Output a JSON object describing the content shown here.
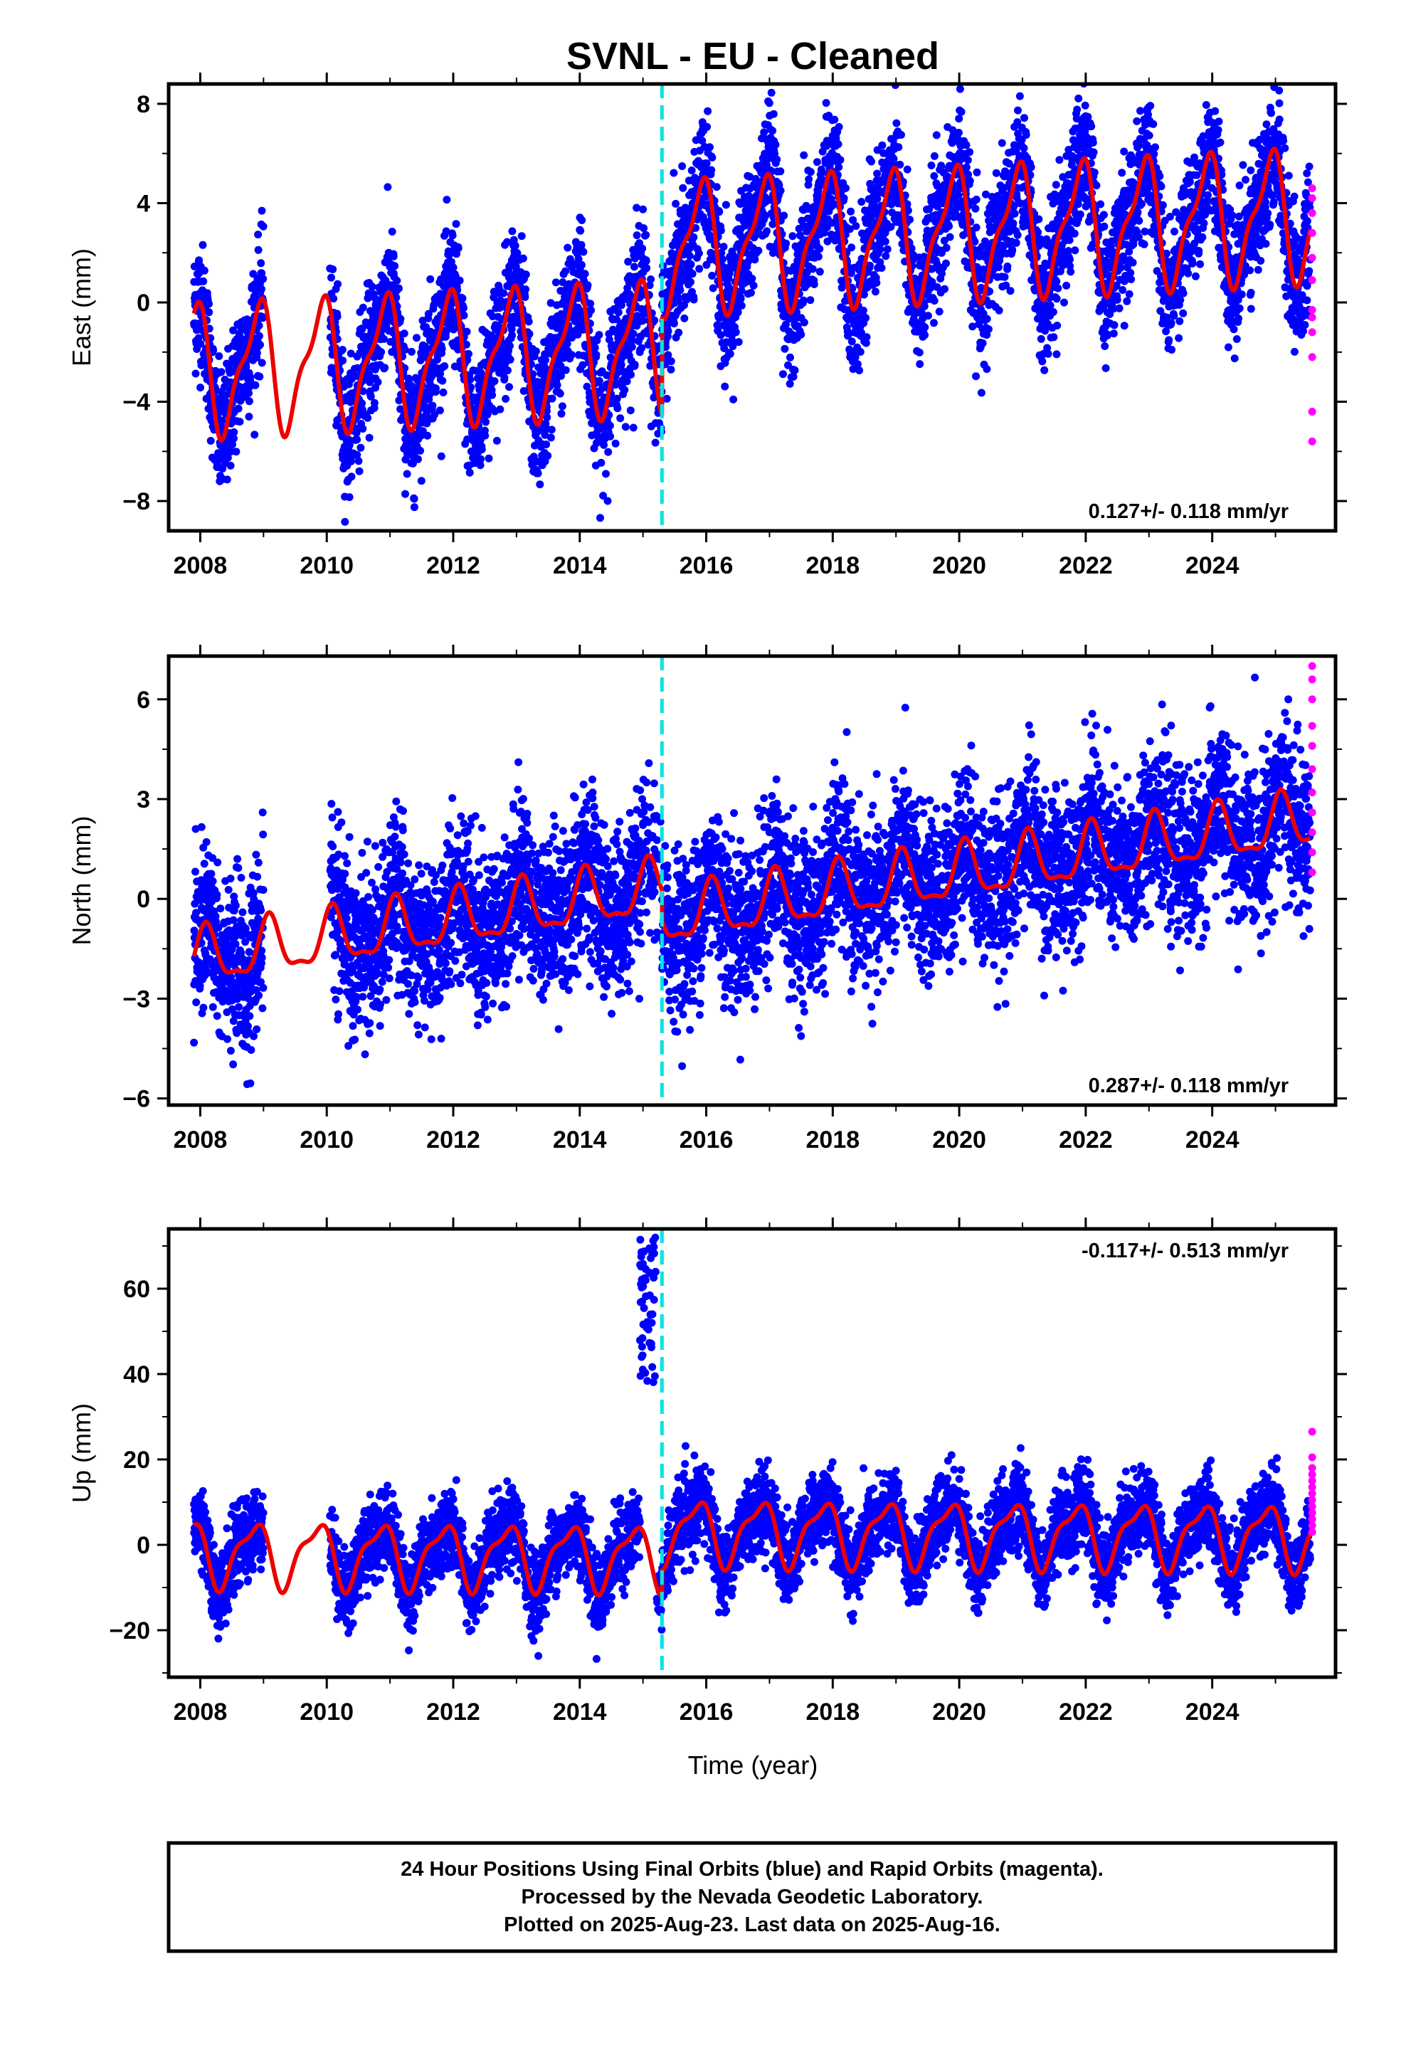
{
  "title": "SVNL  - EU - Cleaned",
  "colors": {
    "final": "#0000ff",
    "rapid": "#ff00ff",
    "model": "#ee0000",
    "offset": "#00e5e5",
    "frame": "#000000"
  },
  "chart_data": [
    {
      "type": "scatter",
      "component": "east",
      "ylabel": "East (mm)",
      "xlim": [
        2007.5,
        2025.95
      ],
      "ylim": [
        -9.2,
        8.8
      ],
      "xticks": [
        2008,
        2010,
        2012,
        2014,
        2016,
        2018,
        2020,
        2022,
        2024
      ],
      "xtick_labels": [
        "2008",
        "2010",
        "2012",
        "2014",
        "2016",
        "2018",
        "2020",
        "2022",
        "2024"
      ],
      "yticks": [
        -8,
        -4,
        0,
        4,
        8
      ],
      "ytick_labels": [
        "−8",
        "−4",
        "0",
        "4",
        "8"
      ],
      "rate": "0.127+/- 0.118 mm/yr",
      "rate_position": "bottom-right",
      "offset_epoch": 2015.3,
      "data_gap": [
        2009.0,
        2010.05
      ],
      "series": [
        {
          "name": "Final Orbits",
          "color": "blue",
          "x_range": [
            2007.9,
            2025.55
          ],
          "trend": {
            "slope": 0.127,
            "value_at_2008": -2.7,
            "step_at_offset": 4.0,
            "annual_amplitude": 2.4,
            "phase": 2.2,
            "scatter": 1.3
          }
        },
        {
          "name": "Rapid Orbits",
          "color": "magenta",
          "x": 2025.58,
          "y": [
            4.6,
            4.2,
            3.6,
            2.8,
            1.8,
            0.9,
            -0.3,
            -0.6,
            -1.2,
            -2.2,
            -4.4,
            -5.6
          ]
        },
        {
          "name": "Model",
          "color": "red",
          "note": "linear trend + offset + seasonal (annual and semi-annual)"
        }
      ]
    },
    {
      "type": "scatter",
      "component": "north",
      "ylabel": "North (mm)",
      "xlim": [
        2007.5,
        2025.95
      ],
      "ylim": [
        -6.2,
        7.3
      ],
      "xticks": [
        2008,
        2010,
        2012,
        2014,
        2016,
        2018,
        2020,
        2022,
        2024
      ],
      "xtick_labels": [
        "2008",
        "2010",
        "2012",
        "2014",
        "2016",
        "2018",
        "2020",
        "2022",
        "2024"
      ],
      "yticks": [
        -6,
        -3,
        0,
        3,
        6
      ],
      "ytick_labels": [
        "−6",
        "−3",
        "0",
        "3",
        "6"
      ],
      "rate": "0.287+/- 0.118 mm/yr",
      "rate_position": "bottom-right",
      "offset_epoch": 2015.3,
      "data_gap": [
        2009.0,
        2010.05
      ],
      "series": [
        {
          "name": "Final Orbits",
          "color": "blue",
          "x_range": [
            2007.9,
            2025.55
          ],
          "trend": {
            "slope": 0.287,
            "value_at_2008": -1.8,
            "step_at_offset": -0.9,
            "annual_amplitude": 0.8,
            "phase": 1.0,
            "scatter": 1.2
          }
        },
        {
          "name": "Rapid Orbits",
          "color": "magenta",
          "x": 2025.58,
          "y": [
            7.0,
            6.6,
            6.0,
            5.2,
            4.6,
            3.9,
            3.2,
            2.6,
            2.0,
            1.4,
            0.8
          ]
        },
        {
          "name": "Model",
          "color": "red"
        }
      ]
    },
    {
      "type": "scatter",
      "component": "up",
      "ylabel": "Up (mm)",
      "xlabel": "Time (year)",
      "xlim": [
        2007.5,
        2025.95
      ],
      "ylim": [
        -31,
        74
      ],
      "xticks": [
        2008,
        2010,
        2012,
        2014,
        2016,
        2018,
        2020,
        2022,
        2024
      ],
      "xtick_labels": [
        "2008",
        "2010",
        "2012",
        "2014",
        "2016",
        "2018",
        "2020",
        "2022",
        "2024"
      ],
      "yticks": [
        -20,
        0,
        20,
        40,
        60
      ],
      "ytick_labels": [
        "−20",
        "0",
        "20",
        "40",
        "60"
      ],
      "rate": "-0.117+/- 0.513 mm/yr",
      "rate_position": "top-right",
      "offset_epoch": 2015.3,
      "data_gap": [
        2009.0,
        2010.05
      ],
      "series": [
        {
          "name": "Final Orbits",
          "color": "blue",
          "x_range": [
            2007.9,
            2025.55
          ],
          "trend": {
            "slope": -0.117,
            "value_at_2008": -2.0,
            "step_at_offset": 6.0,
            "annual_amplitude": 7.0,
            "phase": 2.6,
            "scatter": 4.5
          },
          "anomaly": {
            "x_range": [
              2014.95,
              2015.2
            ],
            "y_range": [
              38,
              72
            ]
          }
        },
        {
          "name": "Rapid Orbits",
          "color": "magenta",
          "x": 2025.58,
          "y": [
            26.5,
            20.5,
            18.0,
            16.5,
            15.0,
            13.5,
            12.0,
            10.5,
            9.0,
            7.5,
            6.0,
            4.5,
            3.0
          ]
        },
        {
          "name": "Model",
          "color": "red"
        }
      ]
    }
  ],
  "footer": {
    "line1": "24 Hour Positions Using Final Orbits (blue) and Rapid Orbits (magenta).",
    "line2": "Processed by the Nevada Geodetic Laboratory.",
    "line3": "Plotted on 2025-Aug-23. Last data on 2025-Aug-16."
  }
}
